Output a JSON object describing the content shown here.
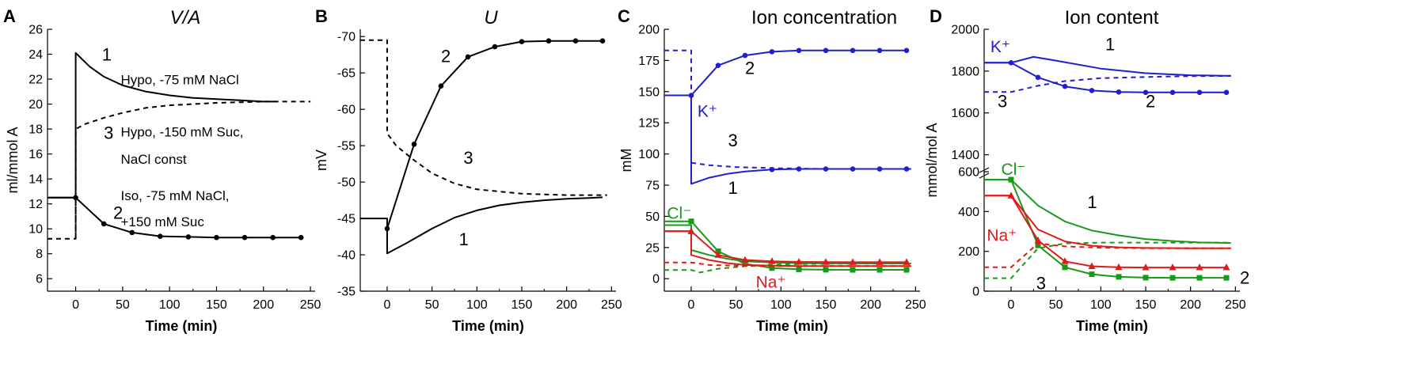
{
  "chart_data": [
    {
      "type": "line",
      "panel": "A",
      "title": "V/A",
      "xlabel": "Time (min)",
      "ylabel": "ml/mmol A",
      "xlim": [
        -30,
        255
      ],
      "ylim": [
        5,
        26
      ],
      "xticks": [
        0,
        50,
        100,
        150,
        200,
        250
      ],
      "yticks": [
        6,
        8,
        10,
        12,
        14,
        16,
        18,
        20,
        22,
        24,
        26
      ],
      "series": [
        {
          "name": "1",
          "style": "solid",
          "color": "#000000",
          "x": [
            -30,
            0,
            0,
            15,
            30,
            50,
            75,
            100,
            125,
            150,
            175,
            200,
            214
          ],
          "y": [
            12.5,
            12.5,
            24.1,
            23.0,
            22.2,
            21.5,
            21.0,
            20.7,
            20.5,
            20.4,
            20.3,
            20.2,
            20.2
          ]
        },
        {
          "name": "2",
          "style": "solid",
          "color": "#000000",
          "markers": true,
          "x": [
            -30,
            0,
            30,
            60,
            90,
            120,
            150,
            180,
            210,
            240
          ],
          "y": [
            12.5,
            12.5,
            10.4,
            9.7,
            9.4,
            9.35,
            9.3,
            9.3,
            9.3,
            9.3
          ]
        },
        {
          "name": "3",
          "style": "dashed",
          "color": "#000000",
          "x": [
            -30,
            0,
            0,
            10,
            30,
            50,
            75,
            100,
            150,
            200,
            250
          ],
          "y": [
            9.2,
            9.2,
            18.0,
            18.4,
            18.9,
            19.3,
            19.7,
            19.9,
            20.1,
            20.2,
            20.2
          ]
        },
        {
          "name": "2-iso-guide",
          "style": "dashed",
          "color": "#000000",
          "x": [
            0,
            0
          ],
          "y": [
            12.5,
            9.2
          ]
        }
      ],
      "annotations": [
        {
          "text": "1",
          "kind": "num",
          "x": 28,
          "y": 23.5
        },
        {
          "text": "Hypo, -75 mM NaCl",
          "kind": "anno",
          "x": 48,
          "y": 21.6
        },
        {
          "text": "3",
          "kind": "num",
          "x": 30,
          "y": 17.2
        },
        {
          "text": "Hypo, -150 mM Suc,",
          "kind": "anno",
          "x": 48,
          "y": 17.4
        },
        {
          "text": "NaCl const",
          "kind": "anno",
          "x": 48,
          "y": 15.2
        },
        {
          "text": "Iso, -75 mM NaCl,",
          "kind": "anno",
          "x": 48,
          "y": 12.3
        },
        {
          "text": "2",
          "kind": "num",
          "x": 40,
          "y": 10.8
        },
        {
          "text": "+150 mM Suc",
          "kind": "anno",
          "x": 48,
          "y": 10.2
        }
      ]
    },
    {
      "type": "line",
      "panel": "B",
      "title": "U",
      "xlabel": "Time (min)",
      "ylabel": "mV",
      "xlim": [
        -30,
        255
      ],
      "ylim": [
        -35,
        -71
      ],
      "xticks": [
        0,
        50,
        100,
        150,
        200,
        250
      ],
      "yticks": [
        -70,
        -65,
        -60,
        -55,
        -50,
        -45,
        -40,
        -35
      ],
      "series": [
        {
          "name": "1",
          "style": "solid",
          "color": "#000000",
          "x": [
            -30,
            0,
            0,
            20,
            50,
            75,
            100,
            125,
            150,
            175,
            200,
            225,
            240
          ],
          "y": [
            -45,
            -45,
            -40.2,
            -41.5,
            -43.6,
            -45.1,
            -46.1,
            -46.8,
            -47.2,
            -47.5,
            -47.7,
            -47.8,
            -47.9
          ]
        },
        {
          "name": "2",
          "style": "solid",
          "color": "#000000",
          "markers": true,
          "x": [
            0,
            30,
            60,
            90,
            120,
            150,
            180,
            210,
            240
          ],
          "y": [
            -43.6,
            -55.2,
            -63.2,
            -67.2,
            -68.6,
            -69.3,
            -69.4,
            -69.4,
            -69.4
          ]
        },
        {
          "name": "3",
          "style": "dashed",
          "color": "#000000",
          "x": [
            -30,
            0,
            0,
            10,
            30,
            50,
            75,
            100,
            150,
            200,
            245
          ],
          "y": [
            -69.5,
            -69.5,
            -56.7,
            -55.0,
            -53.0,
            -51.2,
            -49.8,
            -49.0,
            -48.4,
            -48.2,
            -48.2
          ]
        }
      ],
      "annotations": [
        {
          "text": "2",
          "kind": "num",
          "x": 60,
          "y": -66.5
        },
        {
          "text": "3",
          "kind": "num",
          "x": 85,
          "y": -52.5
        },
        {
          "text": "1",
          "kind": "num",
          "x": 80,
          "y": -41.3
        }
      ]
    },
    {
      "type": "line",
      "panel": "C",
      "title": "Ion concentration",
      "xlabel": "Time (min)",
      "ylabel": "mM",
      "xlim": [
        -30,
        255
      ],
      "ylim": [
        -10,
        200
      ],
      "xticks": [
        0,
        50,
        100,
        150,
        200,
        250
      ],
      "yticks": [
        0,
        25,
        50,
        75,
        100,
        125,
        150,
        175,
        200
      ],
      "series": [
        {
          "name": "K+ 1",
          "style": "solid",
          "color": "#1f1fd0",
          "x": [
            -30,
            0,
            0,
            20,
            40,
            60,
            90,
            120,
            150,
            200,
            245
          ],
          "y": [
            147,
            147,
            76,
            81,
            84,
            86,
            87.5,
            88,
            88,
            88,
            88
          ]
        },
        {
          "name": "K+ 2",
          "style": "solid",
          "color": "#1f1fd0",
          "markers": true,
          "marker": "dot",
          "x": [
            0,
            30,
            60,
            90,
            120,
            150,
            180,
            210,
            240
          ],
          "y": [
            147,
            171,
            179,
            182,
            183,
            183,
            183,
            183,
            183
          ]
        },
        {
          "name": "K+ 3",
          "style": "dashed",
          "color": "#1f1fd0",
          "x": [
            -30,
            0,
            0,
            20,
            50,
            100,
            150,
            245
          ],
          "y": [
            183,
            183,
            93,
            91,
            89.5,
            88.5,
            88,
            88
          ]
        },
        {
          "name": "K+ 1 dots",
          "style": "none",
          "color": "#1f1fd0",
          "markers": true,
          "marker": "dot",
          "x": [
            90,
            120,
            150,
            180,
            210,
            240
          ],
          "y": [
            87.5,
            88,
            88,
            88,
            88,
            88
          ]
        },
        {
          "name": "Cl- 1",
          "style": "solid",
          "color": "#179a17",
          "x": [
            -30,
            0,
            0,
            20,
            40,
            60,
            90,
            120,
            150,
            200,
            245
          ],
          "y": [
            43,
            43,
            23,
            19,
            16,
            14,
            13,
            12.5,
            12.3,
            12.2,
            12.2
          ]
        },
        {
          "name": "Cl- 2",
          "style": "solid",
          "color": "#179a17",
          "markers": true,
          "marker": "square",
          "x": [
            -30,
            0,
            30,
            60,
            90,
            120,
            150,
            180,
            210,
            240
          ],
          "y": [
            46,
            46,
            22,
            12,
            8.5,
            7.5,
            7.2,
            7.1,
            7.1,
            7.1
          ]
        },
        {
          "name": "Cl- 3",
          "style": "dashed",
          "color": "#179a17",
          "x": [
            -30,
            0,
            10,
            30,
            60,
            100,
            150,
            245
          ],
          "y": [
            7,
            7,
            5,
            8,
            10,
            11.5,
            12,
            12.2
          ]
        },
        {
          "name": "Na+ 1",
          "style": "solid",
          "color": "#e01a1a",
          "x": [
            -30,
            0,
            0,
            20,
            40,
            60,
            90,
            120,
            150,
            200,
            245
          ],
          "y": [
            38,
            38,
            19,
            15,
            12.5,
            11,
            10.5,
            10.2,
            10.1,
            10.1,
            10.1
          ]
        },
        {
          "name": "Na+ 2",
          "style": "solid",
          "color": "#e01a1a",
          "markers": true,
          "marker": "triangle",
          "x": [
            -30,
            0,
            30,
            60,
            90,
            120,
            150,
            180,
            210,
            240
          ],
          "y": [
            38,
            38,
            19,
            15,
            14,
            13.5,
            13.3,
            13.2,
            13.2,
            13.2
          ]
        },
        {
          "name": "Na+ 3",
          "style": "dashed",
          "color": "#e01a1a",
          "x": [
            -30,
            0,
            20,
            50,
            100,
            150,
            245
          ],
          "y": [
            13,
            13,
            11,
            10.5,
            10.2,
            10.1,
            10.1
          ]
        }
      ],
      "annotations": [
        {
          "text": "2",
          "kind": "num",
          "color": "#000000",
          "x": 60,
          "y": 164
        },
        {
          "text": "K⁺",
          "kind": "ion",
          "color": "#1f1fd0",
          "x": 7,
          "y": 130
        },
        {
          "text": "3",
          "kind": "num",
          "color": "#000000",
          "x": 41,
          "y": 106
        },
        {
          "text": "1",
          "kind": "num",
          "color": "#000000",
          "x": 41,
          "y": 68
        },
        {
          "text": "Cl⁻",
          "kind": "ion",
          "color": "#179a17",
          "x": -27,
          "y": 48
        },
        {
          "text": "Na⁺",
          "kind": "ion",
          "color": "#e01a1a",
          "x": 72,
          "y": -7
        }
      ]
    },
    {
      "type": "line",
      "panel": "D",
      "title": "Ion content",
      "xlabel": "Time (min)",
      "ylabel": "mmol/mol A",
      "xlim": [
        -30,
        255
      ],
      "axis_break": {
        "lower": [
          0,
          620
        ],
        "upper": [
          1300,
          2000
        ]
      },
      "xticks": [
        0,
        50,
        100,
        150,
        200,
        250
      ],
      "yticks": [
        0,
        200,
        400,
        600,
        1400,
        1600,
        1800,
        2000
      ],
      "series": [
        {
          "name": "K+ 1",
          "style": "solid",
          "color": "#1f1fd0",
          "x": [
            -30,
            0,
            25,
            50,
            100,
            150,
            200,
            245
          ],
          "y": [
            1840,
            1840,
            1868,
            1850,
            1812,
            1790,
            1780,
            1777
          ]
        },
        {
          "name": "K+ 2",
          "style": "solid",
          "color": "#1f1fd0",
          "markers": true,
          "marker": "dot",
          "x": [
            -30,
            0,
            30,
            60,
            90,
            120,
            150,
            180,
            210,
            240
          ],
          "y": [
            1840,
            1840,
            1770,
            1727,
            1707,
            1700,
            1698,
            1698,
            1698,
            1698
          ]
        },
        {
          "name": "K+ 3",
          "style": "dashed",
          "color": "#1f1fd0",
          "x": [
            -30,
            0,
            30,
            60,
            100,
            150,
            200,
            245
          ],
          "y": [
            1700,
            1700,
            1730,
            1752,
            1766,
            1772,
            1776,
            1777
          ]
        },
        {
          "name": "Cl- 1",
          "style": "solid",
          "color": "#179a17",
          "x": [
            -30,
            0,
            30,
            60,
            90,
            120,
            150,
            180,
            210,
            245
          ],
          "y": [
            560,
            560,
            430,
            350,
            305,
            280,
            262,
            252,
            245,
            242
          ]
        },
        {
          "name": "Cl- 2",
          "style": "solid",
          "color": "#179a17",
          "markers": true,
          "marker": "square",
          "x": [
            -30,
            0,
            30,
            60,
            90,
            120,
            150,
            180,
            210,
            240
          ],
          "y": [
            560,
            560,
            230,
            120,
            85,
            72,
            68,
            67,
            67,
            67
          ]
        },
        {
          "name": "Cl- 3",
          "style": "dashed",
          "color": "#179a17",
          "x": [
            -30,
            0,
            30,
            60,
            100,
            150,
            200,
            245
          ],
          "y": [
            65,
            65,
            215,
            240,
            244,
            244,
            244,
            244
          ]
        },
        {
          "name": "Na+ 1",
          "style": "solid",
          "color": "#e01a1a",
          "x": [
            -30,
            0,
            30,
            60,
            90,
            120,
            150,
            200,
            245
          ],
          "y": [
            480,
            480,
            310,
            250,
            228,
            220,
            217,
            216,
            216
          ]
        },
        {
          "name": "Na+ 2",
          "style": "solid",
          "color": "#e01a1a",
          "markers": true,
          "marker": "triangle",
          "x": [
            -30,
            0,
            30,
            60,
            90,
            120,
            150,
            180,
            210,
            240
          ],
          "y": [
            480,
            480,
            255,
            150,
            125,
            120,
            119,
            119,
            119,
            119
          ]
        },
        {
          "name": "Na+ 3",
          "style": "dashed",
          "color": "#e01a1a",
          "x": [
            -30,
            0,
            30,
            60,
            100,
            150,
            245
          ],
          "y": [
            120,
            120,
            240,
            225,
            218,
            216,
            216
          ]
        }
      ],
      "annotations": [
        {
          "text": "K⁺",
          "kind": "ion",
          "color": "#1f1fd0",
          "x": -23,
          "y": 1890
        },
        {
          "text": "1",
          "kind": "num",
          "color": "#000000",
          "x": 105,
          "y": 1900
        },
        {
          "text": "3",
          "kind": "num",
          "color": "#000000",
          "x": -15,
          "y": 1628
        },
        {
          "text": "2",
          "kind": "num",
          "color": "#000000",
          "x": 150,
          "y": 1628
        },
        {
          "text": "Cl⁻",
          "kind": "ion",
          "color": "#179a17",
          "x": -11,
          "y": 585
        },
        {
          "text": "1",
          "kind": "num",
          "color": "#000000",
          "x": 85,
          "y": 418
        },
        {
          "text": "Na⁺",
          "kind": "ion",
          "color": "#e01a1a",
          "x": -27,
          "y": 252
        },
        {
          "text": "3",
          "kind": "num",
          "color": "#000000",
          "x": 28,
          "y": 10
        },
        {
          "text": "2",
          "kind": "num",
          "color": "#000000",
          "x": 255,
          "y": 38
        }
      ]
    }
  ]
}
